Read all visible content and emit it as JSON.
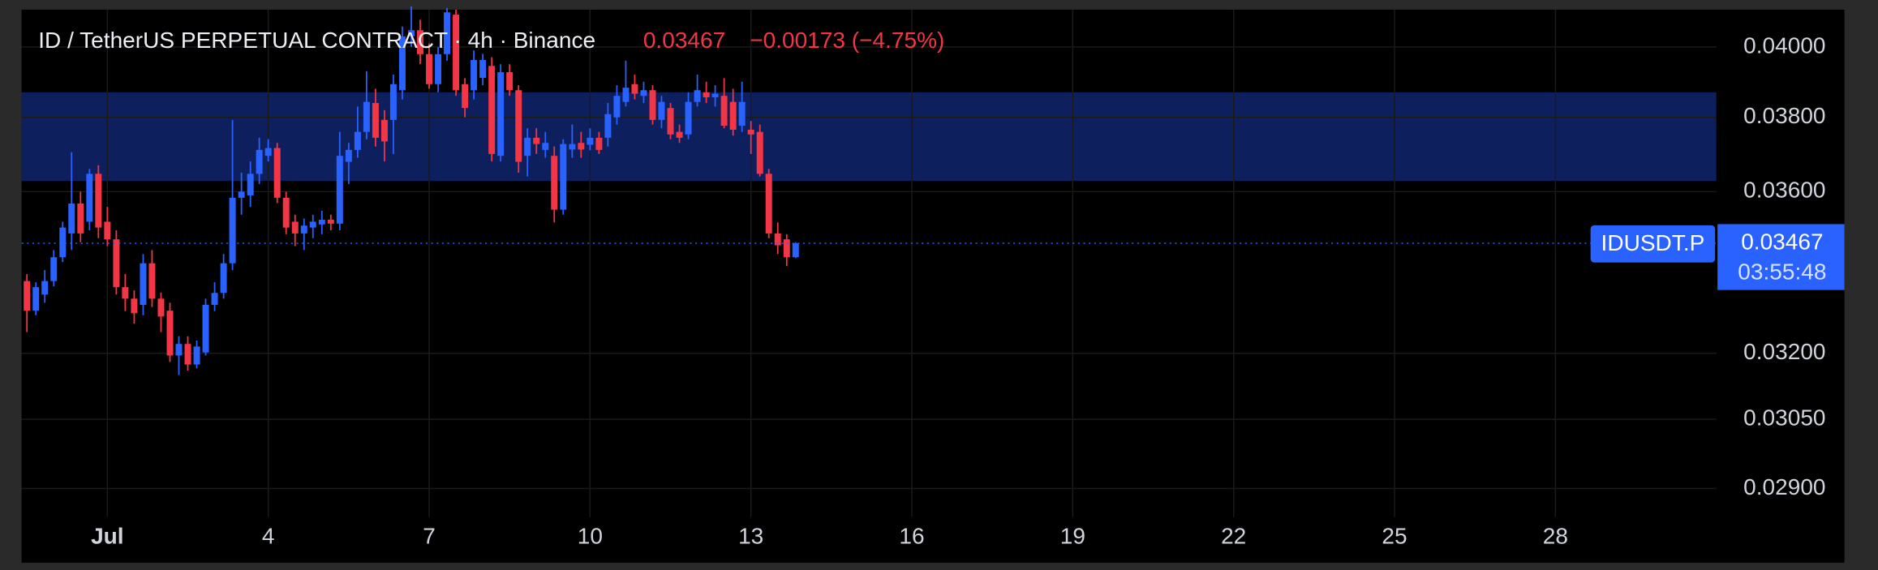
{
  "chart_data": {
    "type": "candlestick",
    "title": "ID / TetherUS PERPETUAL CONTRACT · 4h · Binance",
    "last_price": 0.03467,
    "change": "−0.00173 (−4.75%)",
    "symbol": "IDUSDT.P",
    "countdown": "03:55:48",
    "up_color": "#2962ff",
    "down_color": "#f23645",
    "zone": {
      "low": 0.03628,
      "high": 0.0387,
      "color": "#0e1f5e"
    },
    "log_scale": true,
    "grid": true,
    "xlim": [
      -0.6,
      31
    ],
    "xticks": [
      {
        "value": 1,
        "label": "Jul"
      },
      4,
      7,
      10,
      13,
      16,
      19,
      22,
      25,
      28
    ],
    "ylim": [
      0.0284,
      0.0411
    ],
    "yticks": [
      {
        "value": 0.029,
        "label": "0.02900"
      },
      {
        "value": 0.0305,
        "label": "0.03050"
      },
      {
        "value": 0.032,
        "label": "0.03200"
      },
      {
        "value": 0.036,
        "label": "0.03600"
      },
      {
        "value": 0.038,
        "label": "0.03800"
      },
      {
        "value": 0.04,
        "label": "0.04000"
      }
    ],
    "x": [
      -0.5,
      -0.333,
      -0.167,
      0,
      0.167,
      0.333,
      0.5,
      0.667,
      0.833,
      1,
      1.167,
      1.333,
      1.5,
      1.667,
      1.833,
      2,
      2.167,
      2.333,
      2.5,
      2.667,
      2.833,
      3,
      3.167,
      3.333,
      3.5,
      3.667,
      3.833,
      4,
      4.167,
      4.333,
      4.5,
      4.667,
      4.833,
      5,
      5.167,
      5.333,
      5.5,
      5.667,
      5.833,
      6,
      6.167,
      6.333,
      6.5,
      6.667,
      6.833,
      7,
      7.167,
      7.333,
      7.5,
      7.667,
      7.833,
      8,
      8.167,
      8.333,
      8.5,
      8.667,
      8.833,
      9,
      9.167,
      9.333,
      9.5,
      9.667,
      9.833,
      10,
      10.167,
      10.333,
      10.5,
      10.667,
      10.833,
      11,
      11.167,
      11.333,
      11.5,
      11.667,
      11.833,
      12,
      12.167,
      12.333,
      12.5,
      12.667,
      12.833,
      13,
      13.167,
      13.333,
      13.5,
      13.667,
      13.833
    ],
    "open": [
      0.03373,
      0.03301,
      0.0334,
      0.03373,
      0.03432,
      0.03492,
      0.03569,
      0.03522,
      0.03647,
      0.03522,
      0.03477,
      0.03358,
      0.0333,
      0.03315,
      0.03417,
      0.0333,
      0.03301,
      0.03195,
      0.03222,
      0.03174,
      0.03202,
      0.03315,
      0.03344,
      0.03417,
      0.03584,
      0.0359,
      0.03647,
      0.03695,
      0.03716,
      0.03584,
      0.03522,
      0.03492,
      0.03507,
      0.03515,
      0.03527,
      0.03517,
      0.03679,
      0.03711,
      0.0376,
      0.0384,
      0.03793,
      0.03793,
      0.03876,
      0.04031,
      0.04049,
      0.03979,
      0.03893,
      0.03979,
      0.04095,
      0.03893,
      0.03876,
      0.03911,
      0.03945,
      0.03695,
      0.03927,
      0.03876,
      0.03695,
      0.03744,
      0.03711,
      0.03695,
      0.03553,
      0.03712,
      0.0373,
      0.03725,
      0.03744,
      0.03744,
      0.038,
      0.03843,
      0.03893,
      0.0386,
      0.03876,
      0.03793,
      0.03826,
      0.0376,
      0.03753,
      0.03843,
      0.0387,
      0.03856,
      0.0386,
      0.03843,
      0.03777,
      0.03766,
      0.0376,
      0.03647,
      0.03492,
      0.03477,
      0.03432
    ],
    "high": [
      0.0339,
      0.0337,
      0.034,
      0.0345,
      0.03522,
      0.03705,
      0.036,
      0.0366,
      0.0367,
      0.0356,
      0.035,
      0.0339,
      0.0335,
      0.0344,
      0.0345,
      0.03345,
      0.0332,
      0.0324,
      0.0324,
      0.0323,
      0.0333,
      0.0337,
      0.0344,
      0.03793,
      0.0365,
      0.0368,
      0.03744,
      0.0374,
      0.0373,
      0.036,
      0.0354,
      0.0353,
      0.0354,
      0.0355,
      0.0354,
      0.0376,
      0.0373,
      0.0383,
      0.0393,
      0.0388,
      0.0382,
      0.0392,
      0.0406,
      0.0412,
      0.0408,
      0.0401,
      0.04,
      0.04115,
      0.0411,
      0.0391,
      0.0399,
      0.0398,
      0.0397,
      0.0395,
      0.0395,
      0.0389,
      0.0377,
      0.0377,
      0.0376,
      0.0372,
      0.0374,
      0.0378,
      0.0376,
      0.0377,
      0.0376,
      0.0384,
      0.0389,
      0.0396,
      0.0392,
      0.039,
      0.0389,
      0.0386,
      0.0384,
      0.0378,
      0.0387,
      0.0392,
      0.039,
      0.0389,
      0.0391,
      0.0388,
      0.039,
      0.0379,
      0.0378,
      0.0366,
      0.0352,
      0.0349,
      0.0347
    ],
    "low": [
      0.0325,
      0.0329,
      0.0332,
      0.0336,
      0.0342,
      0.0345,
      0.0347,
      0.035,
      0.0348,
      0.0346,
      0.0334,
      0.033,
      0.0327,
      0.0329,
      0.0331,
      0.0325,
      0.0318,
      0.0315,
      0.0316,
      0.03165,
      0.03195,
      0.033,
      0.0333,
      0.034,
      0.0354,
      0.0356,
      0.0362,
      0.0368,
      0.0357,
      0.0349,
      0.0346,
      0.0345,
      0.0348,
      0.0349,
      0.035,
      0.035,
      0.0362,
      0.0369,
      0.0374,
      0.0372,
      0.0368,
      0.037,
      0.0385,
      0.04,
      0.0395,
      0.0388,
      0.0387,
      0.0396,
      0.0386,
      0.038,
      0.0385,
      0.0389,
      0.0368,
      0.0368,
      0.0386,
      0.0365,
      0.0364,
      0.037,
      0.0369,
      0.0352,
      0.0354,
      0.0369,
      0.0369,
      0.0371,
      0.037,
      0.0372,
      0.0378,
      0.0383,
      0.0385,
      0.0384,
      0.0378,
      0.0377,
      0.0374,
      0.0373,
      0.0374,
      0.0383,
      0.0384,
      0.0383,
      0.0377,
      0.0375,
      0.0376,
      0.037,
      0.0364,
      0.0348,
      0.0344,
      0.0341,
      0.0343
    ],
    "close": [
      0.03301,
      0.03358,
      0.03373,
      0.03432,
      0.03507,
      0.03569,
      0.03492,
      0.03647,
      0.03507,
      0.03477,
      0.03358,
      0.0333,
      0.03295,
      0.03417,
      0.0333,
      0.03287,
      0.03195,
      0.03222,
      0.03174,
      0.03216,
      0.03315,
      0.03344,
      0.03417,
      0.03584,
      0.036,
      0.03647,
      0.03711,
      0.03716,
      0.03584,
      0.03507,
      0.03492,
      0.03512,
      0.03522,
      0.03527,
      0.03517,
      0.03695,
      0.03711,
      0.0376,
      0.03843,
      0.03744,
      0.03734,
      0.03893,
      0.04031,
      0.04049,
      0.03979,
      0.03893,
      0.03979,
      0.04102,
      0.03876,
      0.03826,
      0.03962,
      0.03962,
      0.037,
      0.03927,
      0.03876,
      0.03679,
      0.03744,
      0.03727,
      0.0373,
      0.03553,
      0.03727,
      0.03727,
      0.03712,
      0.03744,
      0.03711,
      0.03809,
      0.0386,
      0.03883,
      0.03866,
      0.03876,
      0.03793,
      0.03843,
      0.03753,
      0.03744,
      0.03843,
      0.03876,
      0.03856,
      0.03866,
      0.03777,
      0.03766,
      0.03843,
      0.03753,
      0.03647,
      0.03492,
      0.03462,
      0.03432,
      0.03467
    ]
  }
}
